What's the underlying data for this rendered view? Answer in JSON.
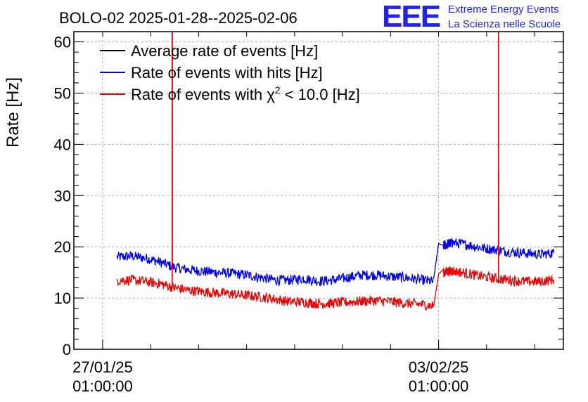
{
  "chart_data": {
    "type": "line",
    "title": "BOLO-02 2025-01-28--2025-02-06",
    "ylabel": "Rate [Hz]",
    "xlabel": "",
    "ylim": [
      0,
      62
    ],
    "xlim_days": [
      -0.6,
      9.6
    ],
    "yticks": [
      0,
      10,
      20,
      30,
      40,
      50,
      60
    ],
    "xticks": [
      {
        "day": 0,
        "line1": "27/01/25",
        "line2": "01:00:00"
      },
      {
        "day": 7,
        "line1": "03/02/25",
        "line2": "01:00:00"
      }
    ],
    "x_unit": "days since 27/01/25 01:00:00",
    "grid": true,
    "legend_position": "top-left",
    "legend_entries": [
      {
        "label": "Average rate of events [Hz]",
        "color": "#000000"
      },
      {
        "label": "Rate of events with hits [Hz]",
        "color": "#0000ee"
      },
      {
        "label_prefix": "Rate of events with ",
        "label_symbol": "χ",
        "label_sup": "2",
        "label_suffix": " < 10.0 [Hz]",
        "color": "#ee0000"
      }
    ],
    "series": [
      {
        "name": "Rate of events with hits [Hz]",
        "color": "#0000ee",
        "x": [
          0.3,
          0.6,
          0.9,
          1.2,
          1.5,
          1.8,
          2.1,
          2.4,
          2.7,
          3.0,
          3.3,
          3.6,
          3.9,
          4.2,
          4.5,
          4.8,
          5.1,
          5.4,
          5.7,
          6.0,
          6.3,
          6.6,
          6.9,
          7.1,
          7.2,
          7.3,
          7.6,
          7.9,
          8.2,
          8.5,
          8.8,
          9.1,
          9.4
        ],
        "values": [
          18.0,
          18.2,
          17.8,
          17.0,
          16.0,
          15.5,
          15.2,
          15.0,
          14.8,
          14.5,
          14.0,
          13.5,
          13.5,
          13.8,
          13.3,
          13.5,
          14.0,
          14.5,
          14.5,
          14.2,
          14.0,
          13.6,
          13.2,
          20.2,
          20.6,
          20.8,
          20.4,
          19.8,
          19.4,
          19.0,
          18.8,
          18.5,
          18.8
        ],
        "spikes": [
          {
            "x": 1.45,
            "value": 62
          },
          {
            "x": 8.25,
            "value": 35
          }
        ]
      },
      {
        "name": "Rate of events with χ2 < 10.0 [Hz]",
        "color": "#ee0000",
        "x": [
          0.3,
          0.6,
          0.9,
          1.2,
          1.5,
          1.8,
          2.1,
          2.4,
          2.7,
          3.0,
          3.3,
          3.6,
          3.9,
          4.2,
          4.5,
          4.8,
          5.1,
          5.4,
          5.7,
          6.0,
          6.3,
          6.6,
          6.9,
          7.1,
          7.2,
          7.3,
          7.6,
          7.9,
          8.2,
          8.5,
          8.8,
          9.1,
          9.4
        ],
        "values": [
          13.5,
          13.5,
          13.2,
          12.8,
          12.0,
          11.5,
          11.2,
          11.0,
          10.8,
          10.5,
          10.2,
          9.8,
          9.3,
          9.2,
          8.9,
          9.0,
          9.2,
          9.4,
          9.5,
          9.3,
          9.0,
          8.8,
          8.5,
          15.0,
          15.2,
          15.3,
          14.8,
          14.2,
          13.8,
          13.5,
          13.2,
          13.2,
          13.6
        ],
        "spikes": [
          {
            "x": 1.45,
            "value": 62
          },
          {
            "x": 8.25,
            "value": 62
          }
        ]
      },
      {
        "name": "Average rate of events [Hz]",
        "color": "#000000",
        "x": [],
        "values": []
      }
    ]
  },
  "logo": {
    "letters": "EEE",
    "line1": "Extreme Energy Events",
    "line2": "La Scienza nelle Scuole"
  }
}
